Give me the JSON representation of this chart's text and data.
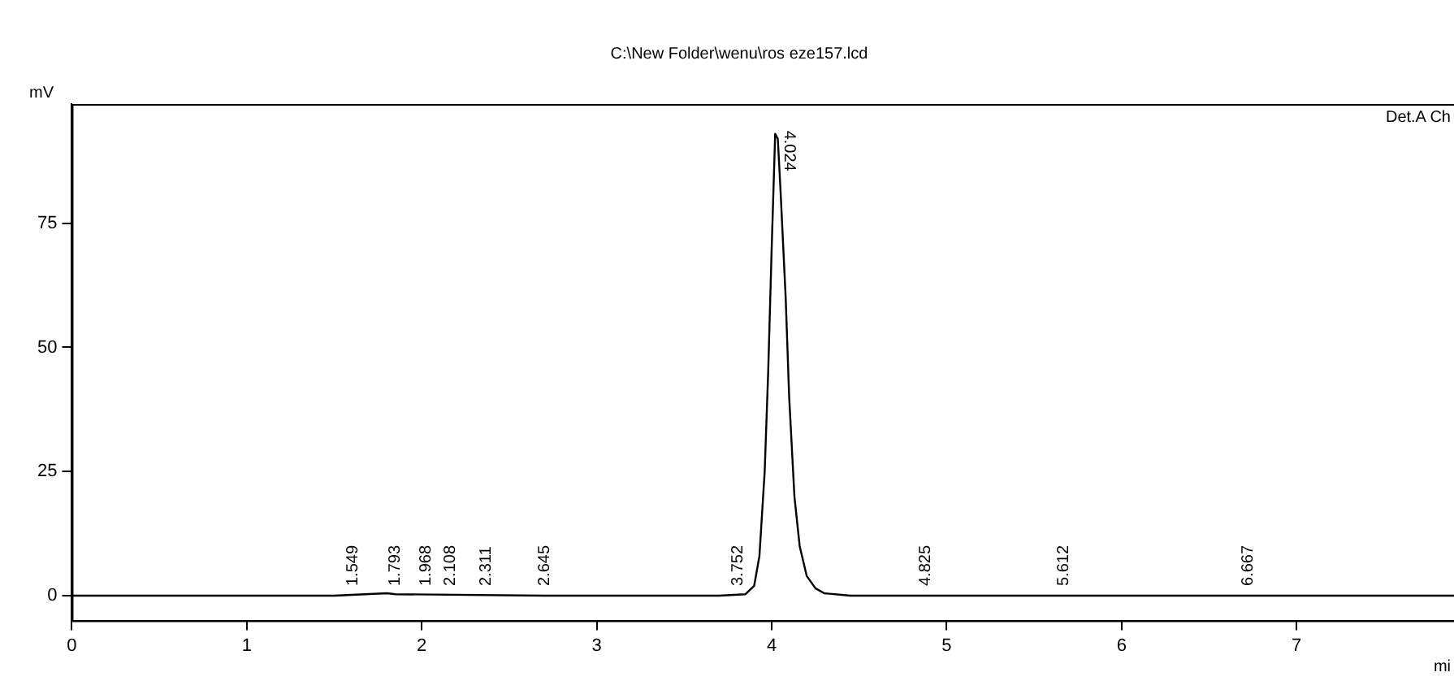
{
  "chart_data": {
    "type": "line",
    "title": "C:\\New Folder\\wenu\\ros eze157.lcd",
    "xlabel": "mi",
    "ylabel": "mV",
    "marker": "none",
    "x": [
      0,
      1.5,
      1.8,
      1.85,
      2.7,
      3.7,
      3.85,
      3.9,
      3.93,
      3.96,
      3.98,
      4.0,
      4.02,
      4.035,
      4.05,
      4.08,
      4.1,
      4.13,
      4.16,
      4.2,
      4.25,
      4.3,
      4.45,
      5,
      7.9
    ],
    "values": [
      0,
      0,
      0.5,
      0.3,
      0,
      0,
      0.3,
      2,
      8,
      25,
      45,
      70,
      93,
      92,
      82,
      60,
      40,
      20,
      10,
      4,
      1.5,
      0.5,
      0,
      0,
      0
    ],
    "color": "#000000",
    "xlim": [
      0,
      7.9
    ],
    "ylim": [
      -5,
      99
    ],
    "xticks": [
      0,
      1,
      2,
      3,
      4,
      5,
      6,
      7
    ],
    "yticks": [
      0,
      25,
      50,
      75
    ],
    "annotations": [
      {
        "text": "1.549",
        "x": 1.549,
        "y": 0
      },
      {
        "text": "1.793",
        "x": 1.793,
        "y": 0
      },
      {
        "text": "1.968",
        "x": 1.968,
        "y": 0
      },
      {
        "text": "2.108",
        "x": 2.108,
        "y": 0
      },
      {
        "text": "2.311",
        "x": 2.311,
        "y": 0
      },
      {
        "text": "2.645",
        "x": 2.645,
        "y": 0
      },
      {
        "text": "3.752",
        "x": 3.752,
        "y": 0
      },
      {
        "text": "4.024",
        "x": 4.024,
        "y": 93
      },
      {
        "text": "4.825",
        "x": 4.825,
        "y": 0
      },
      {
        "text": "5.612",
        "x": 5.612,
        "y": 0
      },
      {
        "text": "6.667",
        "x": 6.667,
        "y": 0
      },
      "Det.A Ch"
    ]
  }
}
